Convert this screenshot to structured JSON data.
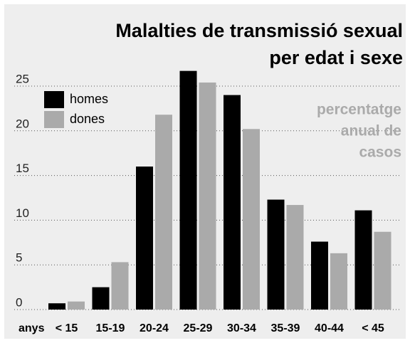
{
  "chart_data": {
    "type": "bar",
    "title": [
      "Malalties de transmissió sexual",
      "per edat i sexe"
    ],
    "subtitle": [
      "percentatge",
      "anual de",
      "casos"
    ],
    "x_label": "anys",
    "categories": [
      "< 15",
      "15-19",
      "20-24",
      "25-29",
      "30-34",
      "35-39",
      "40-44",
      "< 45"
    ],
    "series": [
      {
        "name": "homes",
        "color": "#000000",
        "values": [
          0.7,
          2.5,
          16.0,
          26.7,
          24.0,
          12.3,
          7.6,
          11.1
        ]
      },
      {
        "name": "dones",
        "color": "#aaaaaa",
        "values": [
          0.9,
          5.3,
          21.8,
          25.4,
          20.2,
          11.7,
          6.3,
          8.7
        ]
      }
    ],
    "ylim": [
      0,
      25
    ],
    "yticks": [
      0,
      5,
      10,
      15,
      20,
      25
    ],
    "grid": true,
    "legend": "upper left"
  }
}
